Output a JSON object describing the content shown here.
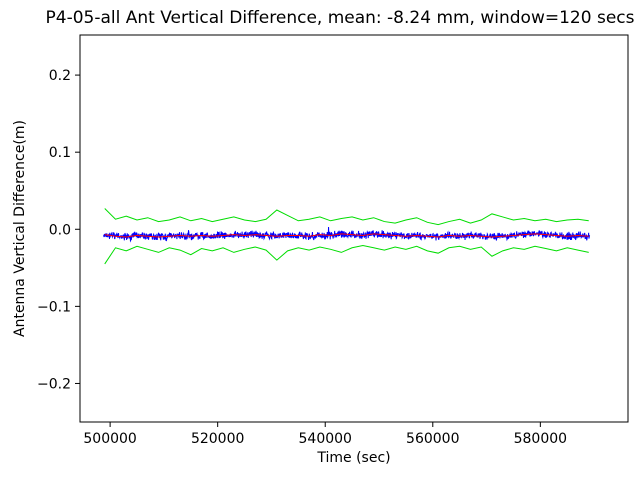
{
  "title": "P4-05-all Ant Vertical Difference, mean: -8.24 mm, window=120 secs",
  "chart_data": {
    "type": "line",
    "title": "P4-05-all Ant Vertical Difference, mean: -8.24 mm, window=120 secs",
    "xlabel": "Time (sec)",
    "ylabel": "Antenna Vertical Difference(m)",
    "xlim": [
      494400,
      596300
    ],
    "ylim": [
      -0.25,
      0.252
    ],
    "x_ticks": [
      500000,
      520000,
      540000,
      560000,
      580000
    ],
    "x_tick_labels": [
      "500000",
      "520000",
      "540000",
      "560000",
      "580000"
    ],
    "y_ticks": [
      -0.2,
      -0.1,
      0.0,
      0.1,
      0.2
    ],
    "y_tick_labels": [
      "−0.2",
      "−0.1",
      "0.0",
      "0.1",
      "0.2"
    ],
    "grid": false,
    "legend_position": "none",
    "mean_value_mm": -8.24,
    "window_secs": 120,
    "series": [
      {
        "name": "antenna-vertical-difference-noise",
        "render": "noise",
        "color": "#0000ff",
        "width": 1,
        "center_from": "mean-line",
        "amplitude": 0.005,
        "x_start": 498800,
        "x_end": 589200,
        "x_step": 60,
        "seed": 42
      },
      {
        "name": "mean-line",
        "render": "line",
        "color": "#ff0000",
        "width": 1,
        "x": [
          499000,
          501000,
          503000,
          505000,
          507000,
          509000,
          511000,
          513000,
          515000,
          517000,
          519000,
          521000,
          523000,
          525000,
          527000,
          529000,
          531000,
          533000,
          535000,
          537000,
          539000,
          541000,
          543000,
          545000,
          547000,
          549000,
          551000,
          553000,
          555000,
          557000,
          559000,
          561000,
          563000,
          565000,
          567000,
          569000,
          571000,
          573000,
          575000,
          577000,
          579000,
          581000,
          583000,
          585000,
          587000,
          589000
        ],
        "y": [
          -0.007,
          -0.009,
          -0.01,
          -0.008,
          -0.009,
          -0.01,
          -0.009,
          -0.008,
          -0.009,
          -0.008,
          -0.009,
          -0.008,
          -0.007,
          -0.008,
          -0.007,
          -0.008,
          -0.009,
          -0.008,
          -0.008,
          -0.009,
          -0.007,
          -0.008,
          -0.006,
          -0.007,
          -0.008,
          -0.006,
          -0.007,
          -0.008,
          -0.009,
          -0.008,
          -0.009,
          -0.01,
          -0.008,
          -0.009,
          -0.008,
          -0.009,
          -0.01,
          -0.009,
          -0.008,
          -0.007,
          -0.006,
          -0.007,
          -0.008,
          -0.009,
          -0.008,
          -0.009
        ]
      },
      {
        "name": "upper-bound",
        "render": "line",
        "color": "#00dd00",
        "width": 1,
        "x": [
          499000,
          501000,
          503000,
          505000,
          507000,
          509000,
          511000,
          513000,
          515000,
          517000,
          519000,
          521000,
          523000,
          525000,
          527000,
          529000,
          531000,
          533000,
          535000,
          537000,
          539000,
          541000,
          543000,
          545000,
          547000,
          549000,
          551000,
          553000,
          555000,
          557000,
          559000,
          561000,
          563000,
          565000,
          567000,
          569000,
          571000,
          573000,
          575000,
          577000,
          579000,
          581000,
          583000,
          585000,
          587000,
          589000
        ],
        "y": [
          0.027,
          0.013,
          0.017,
          0.012,
          0.015,
          0.01,
          0.012,
          0.016,
          0.011,
          0.014,
          0.01,
          0.013,
          0.016,
          0.012,
          0.01,
          0.013,
          0.025,
          0.018,
          0.011,
          0.013,
          0.016,
          0.011,
          0.014,
          0.016,
          0.012,
          0.015,
          0.01,
          0.008,
          0.012,
          0.015,
          0.009,
          0.006,
          0.01,
          0.013,
          0.008,
          0.012,
          0.02,
          0.016,
          0.012,
          0.014,
          0.011,
          0.013,
          0.01,
          0.012,
          0.013,
          0.011
        ]
      },
      {
        "name": "lower-bound",
        "render": "line",
        "color": "#00dd00",
        "width": 1,
        "x": [
          499000,
          501000,
          503000,
          505000,
          507000,
          509000,
          511000,
          513000,
          515000,
          517000,
          519000,
          521000,
          523000,
          525000,
          527000,
          529000,
          531000,
          533000,
          535000,
          537000,
          539000,
          541000,
          543000,
          545000,
          547000,
          549000,
          551000,
          553000,
          555000,
          557000,
          559000,
          561000,
          563000,
          565000,
          567000,
          569000,
          571000,
          573000,
          575000,
          577000,
          579000,
          581000,
          583000,
          585000,
          587000,
          589000
        ],
        "y": [
          -0.045,
          -0.024,
          -0.028,
          -0.022,
          -0.026,
          -0.03,
          -0.024,
          -0.027,
          -0.033,
          -0.025,
          -0.028,
          -0.024,
          -0.03,
          -0.026,
          -0.023,
          -0.027,
          -0.04,
          -0.028,
          -0.024,
          -0.027,
          -0.023,
          -0.026,
          -0.03,
          -0.024,
          -0.021,
          -0.024,
          -0.027,
          -0.023,
          -0.026,
          -0.022,
          -0.028,
          -0.031,
          -0.024,
          -0.022,
          -0.026,
          -0.023,
          -0.035,
          -0.028,
          -0.024,
          -0.026,
          -0.022,
          -0.025,
          -0.028,
          -0.024,
          -0.027,
          -0.03
        ]
      }
    ]
  }
}
